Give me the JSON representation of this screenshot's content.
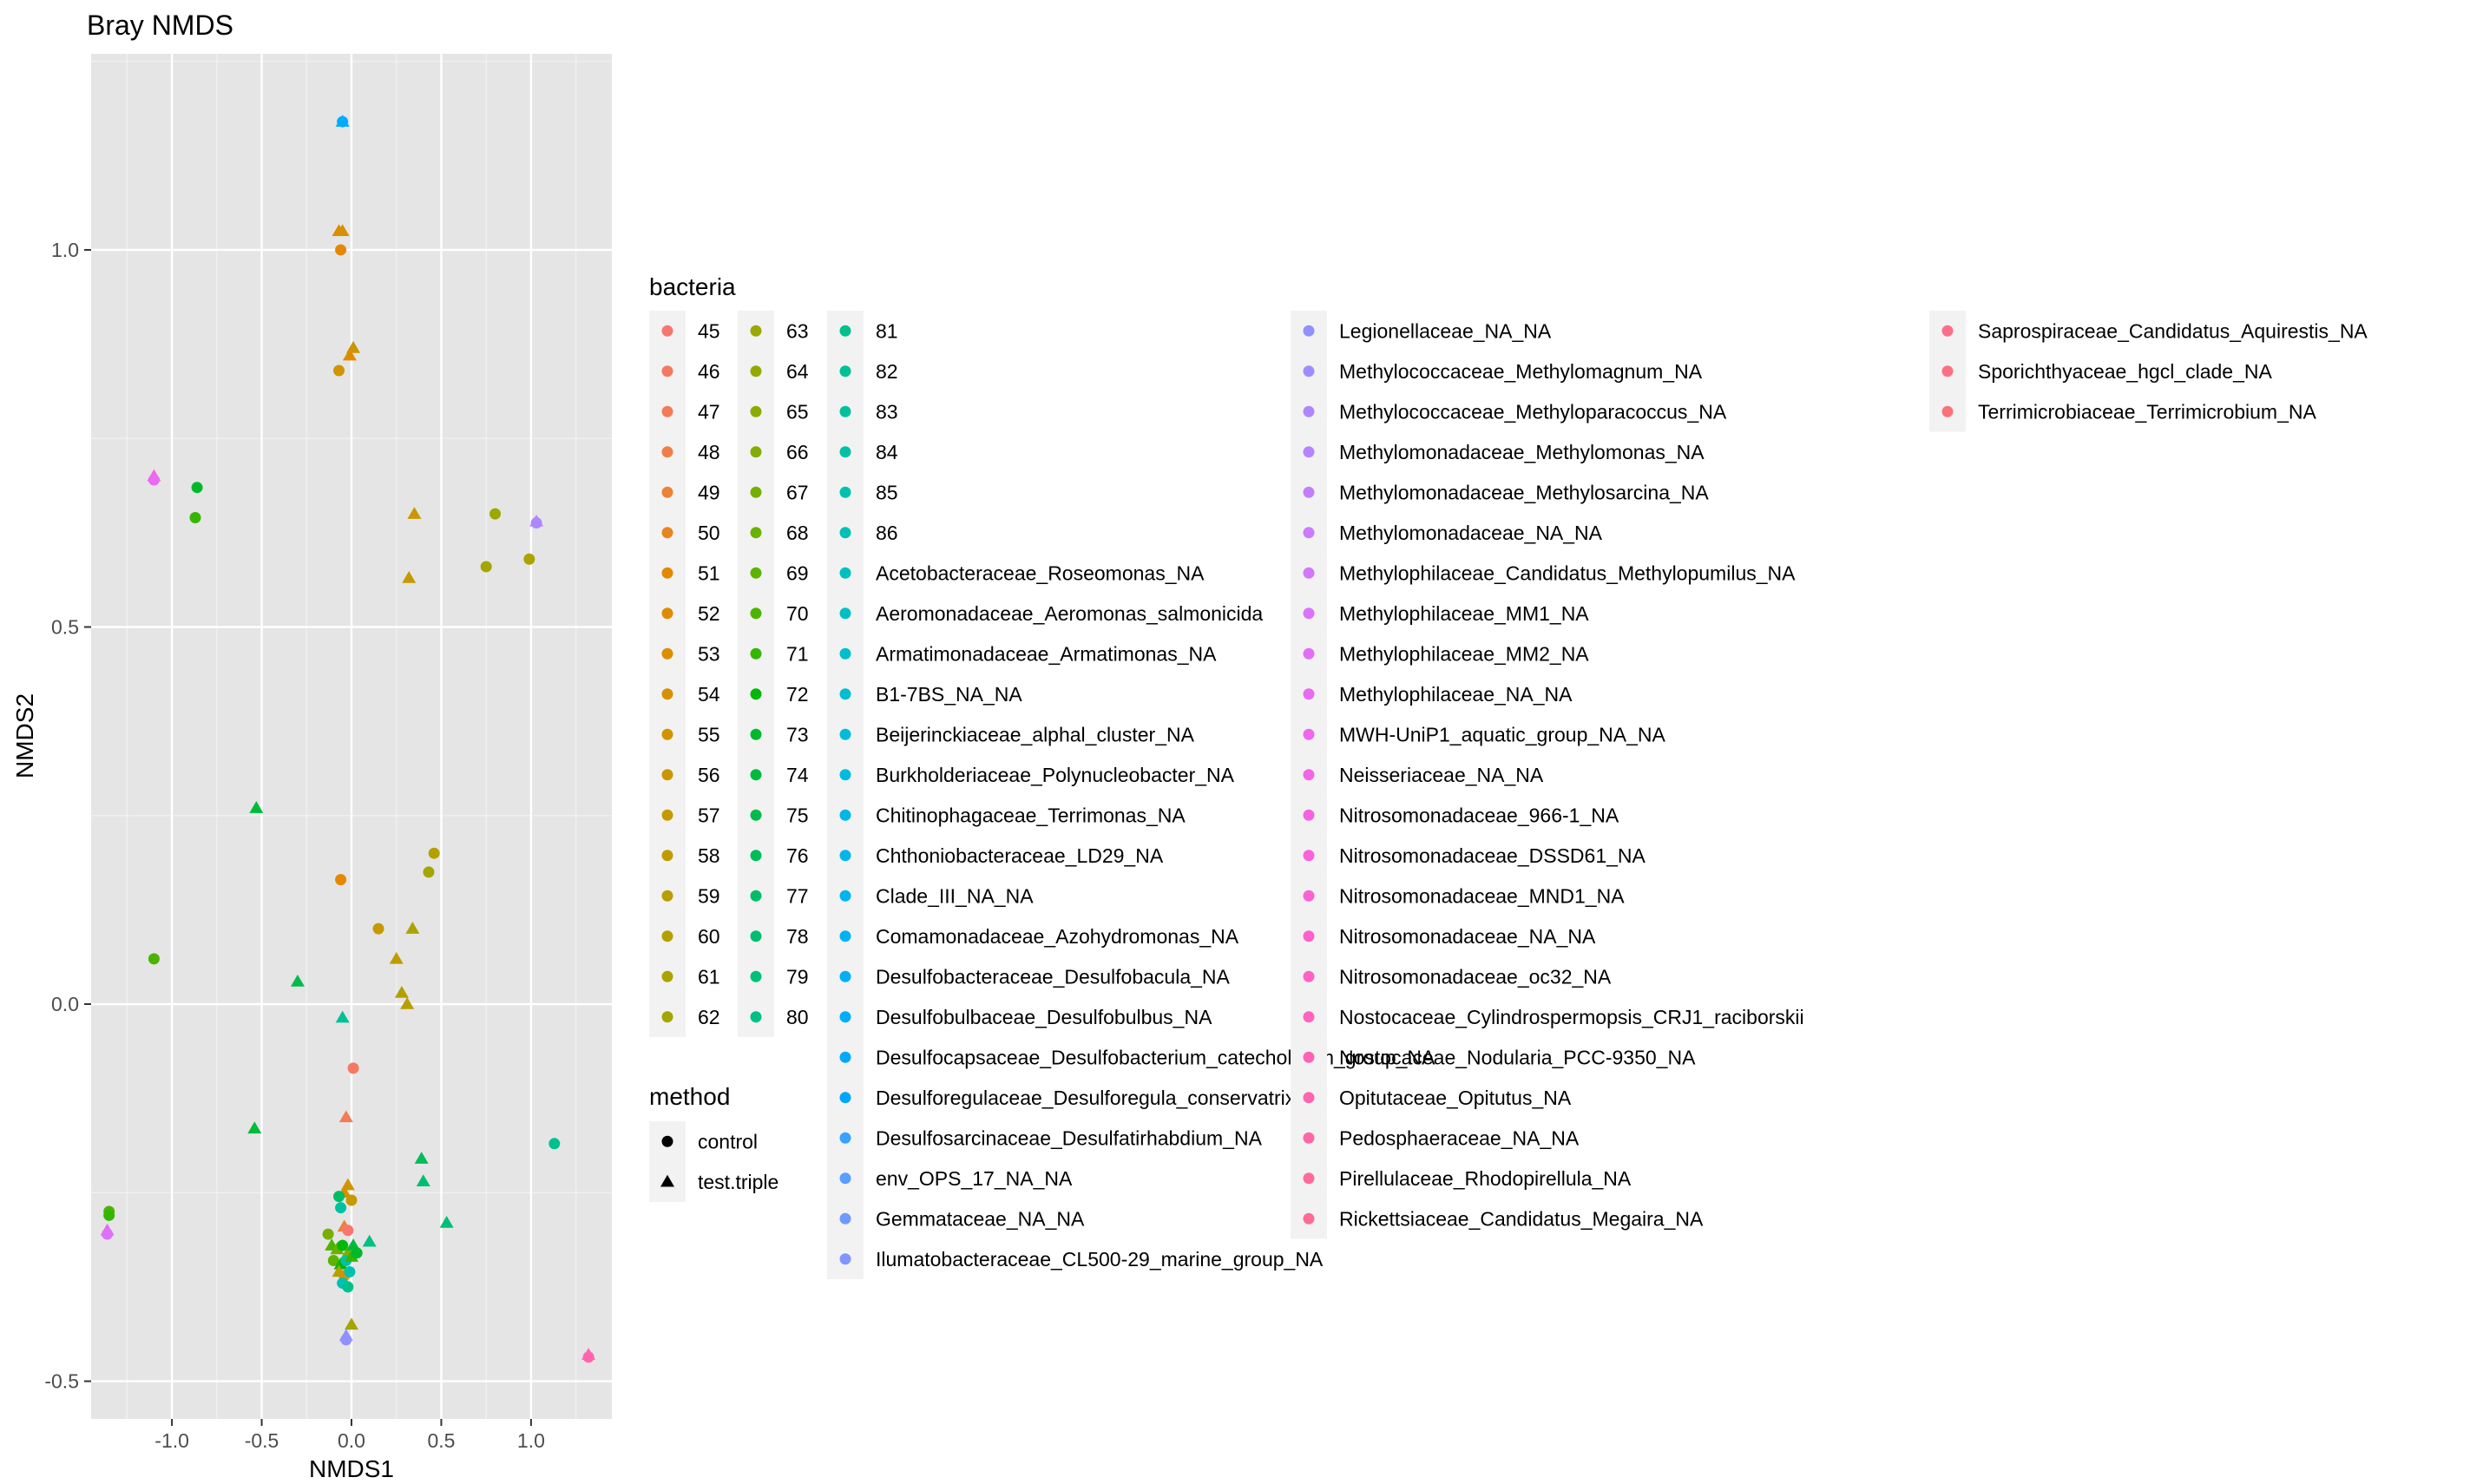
{
  "chart_data": {
    "type": "scatter",
    "title": "Bray NMDS",
    "xlabel": "NMDS1",
    "ylabel": "NMDS2",
    "xlim": [
      -1.45,
      1.45
    ],
    "ylim": [
      -0.55,
      1.26
    ],
    "x_ticks": [
      -1.0,
      -0.5,
      0.0,
      0.5,
      1.0
    ],
    "x_tick_labels": [
      "-1.0",
      "-0.5",
      "0.0",
      "0.5",
      "1.0"
    ],
    "y_ticks": [
      -0.5,
      0.0,
      0.5,
      1.0
    ],
    "y_tick_labels": [
      "-0.5",
      "0.0",
      "0.5",
      "1.0"
    ],
    "grid": true,
    "background": "#E5E5E5",
    "legend_bacteria_title": "bacteria",
    "legend_method_title": "method",
    "bacteria_levels": [
      "45",
      "46",
      "47",
      "48",
      "49",
      "50",
      "51",
      "52",
      "53",
      "54",
      "55",
      "56",
      "57",
      "58",
      "59",
      "60",
      "61",
      "62",
      "63",
      "64",
      "65",
      "66",
      "67",
      "68",
      "69",
      "70",
      "71",
      "72",
      "73",
      "74",
      "75",
      "76",
      "77",
      "78",
      "79",
      "80",
      "81",
      "82",
      "83",
      "84",
      "85",
      "86",
      "Acetobacteraceae_Roseomonas_NA",
      "Aeromonadaceae_Aeromonas_salmonicida",
      "Armatimonadaceae_Armatimonas_NA",
      "B1-7BS_NA_NA",
      "Beijerinckiaceae_alphal_cluster_NA",
      "Burkholderiaceae_Polynucleobacter_NA",
      "Chitinophagaceae_Terrimonas_NA",
      "Chthoniobacteraceae_LD29_NA",
      "Clade_III_NA_NA",
      "Comamonadaceae_Azohydromonas_NA",
      "Desulfobacteraceae_Desulfobacula_NA",
      "Desulfobulbaceae_Desulfobulbus_NA",
      "Desulfocapsaceae_Desulfobacterium_catecholicum_group_NA",
      "Desulforegulaceae_Desulforegula_conservatrix",
      "Desulfosarcinaceae_Desulfatirhabdium_NA",
      "env_OPS_17_NA_NA",
      "Gemmataceae_NA_NA",
      "Ilumatobacteraceae_CL500-29_marine_group_NA",
      "Legionellaceae_NA_NA",
      "Methylococcaceae_Methylomagnum_NA",
      "Methylococcaceae_Methyloparacoccus_NA",
      "Methylomonadaceae_Methylomonas_NA",
      "Methylomonadaceae_Methylosarcina_NA",
      "Methylomonadaceae_NA_NA",
      "Methylophilaceae_Candidatus_Methylopumilus_NA",
      "Methylophilaceae_MM1_NA",
      "Methylophilaceae_MM2_NA",
      "Methylophilaceae_NA_NA",
      "MWH-UniP1_aquatic_group_NA_NA",
      "Neisseriaceae_NA_NA",
      "Nitrosomonadaceae_966-1_NA",
      "Nitrosomonadaceae_DSSD61_NA",
      "Nitrosomonadaceae_MND1_NA",
      "Nitrosomonadaceae_NA_NA",
      "Nitrosomonadaceae_oc32_NA",
      "Nostocaceae_Cylindrospermopsis_CRJ1_raciborskii",
      "Nostocaceae_Nodularia_PCC-9350_NA",
      "Opitutaceae_Opitutus_NA",
      "Pedosphaeraceae_NA_NA",
      "Pirellulaceae_Rhodopirellula_NA",
      "Rickettsiaceae_Candidatus_Megaira_NA",
      "Saprospiraceae_Candidatus_Aquirestis_NA",
      "Sporichthyaceae_hgcl_clade_NA",
      "Terrimicrobiaceae_Terrimicrobium_NA"
    ],
    "method_levels": [
      "control",
      "test.triple"
    ],
    "points": [
      {
        "x": -0.05,
        "y": 1.17,
        "method": "test.triple",
        "bacteria": "Desulfobulbaceae_Desulfobulbus_NA"
      },
      {
        "x": -0.05,
        "y": 1.17,
        "method": "control",
        "bacteria": "Desulfobulbaceae_Desulfobulbus_NA"
      },
      {
        "x": -0.07,
        "y": 1.025,
        "method": "test.triple",
        "bacteria": "53"
      },
      {
        "x": -0.05,
        "y": 1.025,
        "method": "test.triple",
        "bacteria": "54"
      },
      {
        "x": -0.06,
        "y": 1.0,
        "method": "control",
        "bacteria": "51"
      },
      {
        "x": 0.01,
        "y": 0.87,
        "method": "test.triple",
        "bacteria": "56"
      },
      {
        "x": -0.01,
        "y": 0.86,
        "method": "test.triple",
        "bacteria": "52"
      },
      {
        "x": -0.07,
        "y": 0.84,
        "method": "control",
        "bacteria": "55"
      },
      {
        "x": -1.1,
        "y": 0.7,
        "method": "test.triple",
        "bacteria": "Nitrosomonadaceae_DSSD61_NA"
      },
      {
        "x": -1.1,
        "y": 0.695,
        "method": "control",
        "bacteria": "Methylophilaceae_NA_NA"
      },
      {
        "x": -0.86,
        "y": 0.685,
        "method": "control",
        "bacteria": "73"
      },
      {
        "x": -0.87,
        "y": 0.645,
        "method": "control",
        "bacteria": "71"
      },
      {
        "x": 0.35,
        "y": 0.65,
        "method": "test.triple",
        "bacteria": "56"
      },
      {
        "x": 0.8,
        "y": 0.65,
        "method": "control",
        "bacteria": "63"
      },
      {
        "x": 1.03,
        "y": 0.64,
        "method": "test.triple",
        "bacteria": "Methylomonadaceae_NA_NA"
      },
      {
        "x": 1.03,
        "y": 0.638,
        "method": "control",
        "bacteria": "Methylococcaceae_Methyloparacoccus_NA"
      },
      {
        "x": 0.75,
        "y": 0.58,
        "method": "control",
        "bacteria": "62"
      },
      {
        "x": 0.99,
        "y": 0.59,
        "method": "control",
        "bacteria": "61"
      },
      {
        "x": 0.32,
        "y": 0.565,
        "method": "test.triple",
        "bacteria": "57"
      },
      {
        "x": -0.53,
        "y": 0.26,
        "method": "test.triple",
        "bacteria": "74"
      },
      {
        "x": 0.46,
        "y": 0.2,
        "method": "control",
        "bacteria": "60"
      },
      {
        "x": 0.43,
        "y": 0.175,
        "method": "control",
        "bacteria": "62"
      },
      {
        "x": -0.06,
        "y": 0.165,
        "method": "control",
        "bacteria": "51"
      },
      {
        "x": 0.15,
        "y": 0.1,
        "method": "control",
        "bacteria": "57"
      },
      {
        "x": 0.34,
        "y": 0.1,
        "method": "test.triple",
        "bacteria": "61"
      },
      {
        "x": 0.25,
        "y": 0.06,
        "method": "test.triple",
        "bacteria": "58"
      },
      {
        "x": -1.1,
        "y": 0.06,
        "method": "control",
        "bacteria": "70"
      },
      {
        "x": -0.3,
        "y": 0.03,
        "method": "test.triple",
        "bacteria": "75"
      },
      {
        "x": 0.28,
        "y": 0.015,
        "method": "test.triple",
        "bacteria": "60"
      },
      {
        "x": 0.31,
        "y": 0.0,
        "method": "test.triple",
        "bacteria": "59"
      },
      {
        "x": -0.05,
        "y": -0.018,
        "method": "test.triple",
        "bacteria": "82"
      },
      {
        "x": 0.01,
        "y": -0.085,
        "method": "control",
        "bacteria": "46"
      },
      {
        "x": -0.03,
        "y": -0.15,
        "method": "test.triple",
        "bacteria": "47"
      },
      {
        "x": -0.54,
        "y": -0.165,
        "method": "test.triple",
        "bacteria": "74"
      },
      {
        "x": 1.13,
        "y": -0.185,
        "method": "control",
        "bacteria": "81"
      },
      {
        "x": 0.39,
        "y": -0.205,
        "method": "test.triple",
        "bacteria": "76"
      },
      {
        "x": 0.4,
        "y": -0.235,
        "method": "test.triple",
        "bacteria": "78"
      },
      {
        "x": -0.02,
        "y": -0.24,
        "method": "test.triple",
        "bacteria": "55"
      },
      {
        "x": -0.04,
        "y": -0.25,
        "method": "test.triple",
        "bacteria": "53"
      },
      {
        "x": -0.07,
        "y": -0.255,
        "method": "control",
        "bacteria": "77"
      },
      {
        "x": 0.0,
        "y": -0.26,
        "method": "control",
        "bacteria": "57"
      },
      {
        "x": -0.06,
        "y": -0.27,
        "method": "control",
        "bacteria": "83"
      },
      {
        "x": -1.35,
        "y": -0.275,
        "method": "control",
        "bacteria": "70"
      },
      {
        "x": -1.35,
        "y": -0.28,
        "method": "control",
        "bacteria": "71"
      },
      {
        "x": 0.53,
        "y": -0.29,
        "method": "test.triple",
        "bacteria": "79"
      },
      {
        "x": -0.04,
        "y": -0.295,
        "method": "test.triple",
        "bacteria": "49"
      },
      {
        "x": -0.02,
        "y": -0.3,
        "method": "control",
        "bacteria": "45"
      },
      {
        "x": -1.36,
        "y": -0.3,
        "method": "test.triple",
        "bacteria": "Methylophilaceae_MM2_NA"
      },
      {
        "x": -1.36,
        "y": -0.305,
        "method": "control",
        "bacteria": "Methylophilaceae_MM1_NA"
      },
      {
        "x": -0.13,
        "y": -0.305,
        "method": "control",
        "bacteria": "67"
      },
      {
        "x": 0.1,
        "y": -0.315,
        "method": "test.triple",
        "bacteria": "80"
      },
      {
        "x": -0.11,
        "y": -0.32,
        "method": "test.triple",
        "bacteria": "70"
      },
      {
        "x": -0.08,
        "y": -0.325,
        "method": "test.triple",
        "bacteria": "68"
      },
      {
        "x": -0.05,
        "y": -0.32,
        "method": "control",
        "bacteria": "72"
      },
      {
        "x": -0.02,
        "y": -0.33,
        "method": "test.triple",
        "bacteria": "66"
      },
      {
        "x": 0.01,
        "y": -0.32,
        "method": "test.triple",
        "bacteria": "74"
      },
      {
        "x": -0.1,
        "y": -0.34,
        "method": "control",
        "bacteria": "69"
      },
      {
        "x": -0.06,
        "y": -0.345,
        "method": "test.triple",
        "bacteria": "72"
      },
      {
        "x": -0.03,
        "y": -0.34,
        "method": "control",
        "bacteria": "84"
      },
      {
        "x": 0.0,
        "y": -0.335,
        "method": "test.triple",
        "bacteria": "71"
      },
      {
        "x": 0.03,
        "y": -0.33,
        "method": "control",
        "bacteria": "73"
      },
      {
        "x": -0.07,
        "y": -0.355,
        "method": "test.triple",
        "bacteria": "59"
      },
      {
        "x": -0.04,
        "y": -0.36,
        "method": "control",
        "bacteria": "54"
      },
      {
        "x": -0.01,
        "y": -0.355,
        "method": "control",
        "bacteria": "85"
      },
      {
        "x": -0.05,
        "y": -0.37,
        "method": "control",
        "bacteria": "86"
      },
      {
        "x": -0.02,
        "y": -0.375,
        "method": "control",
        "bacteria": "81"
      },
      {
        "x": 0.0,
        "y": -0.425,
        "method": "test.triple",
        "bacteria": "62"
      },
      {
        "x": -0.03,
        "y": -0.44,
        "method": "test.triple",
        "bacteria": "Ilumatobacteraceae_CL500-29_marine_group_NA"
      },
      {
        "x": -0.03,
        "y": -0.445,
        "method": "control",
        "bacteria": "Legionellaceae_NA_NA"
      },
      {
        "x": 1.32,
        "y": -0.465,
        "method": "test.triple",
        "bacteria": "Nostocaceae_Nodularia_PCC-9350_NA"
      },
      {
        "x": 1.32,
        "y": -0.468,
        "method": "control",
        "bacteria": "Opitutaceae_Opitutus_NA"
      }
    ]
  }
}
